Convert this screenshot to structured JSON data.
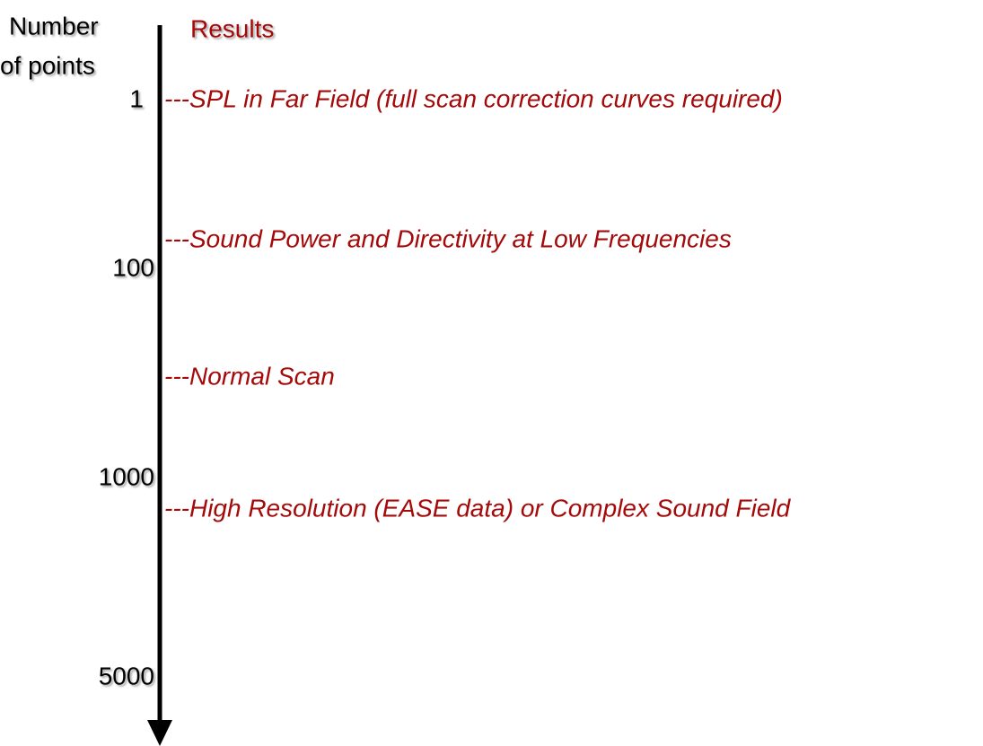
{
  "axis_title": [
    "Number",
    "of points"
  ],
  "results_title": "Results",
  "ticks": [
    "1",
    "100",
    "1000",
    "5000"
  ],
  "results": [
    "---SPL in Far Field (full scan correction curves required)",
    "---Sound Power and Directivity at Low Frequencies",
    "---Normal Scan",
    "---High Resolution (EASE data) or Complex Sound Field"
  ]
}
